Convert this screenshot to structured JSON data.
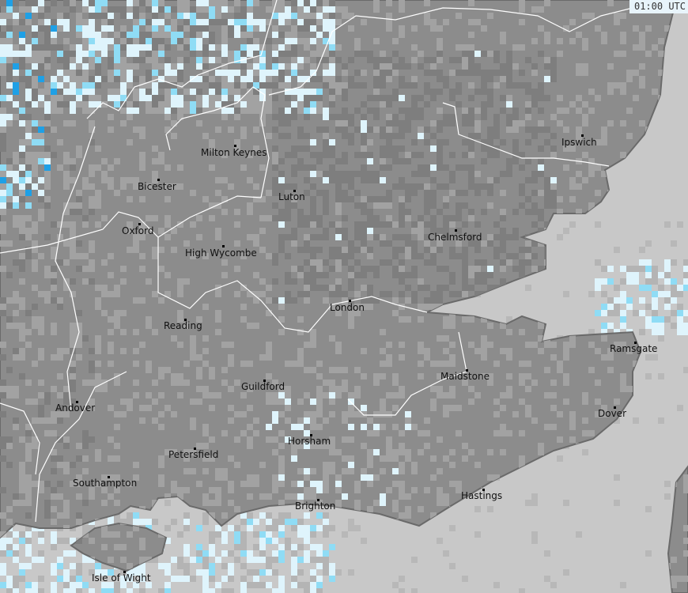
{
  "timestamp": "01:00 UTC",
  "colors": {
    "sea": "#c8c8c8",
    "land": "#8c8c8c",
    "land_light": "#a2a2a2",
    "land_dark": "#7e7e7e",
    "rain_light": "#dff4fc",
    "rain_medium": "#8fdcf5",
    "rain_heavy": "#1ea0e6",
    "boundary": "#ffffff",
    "coast": "#6a6a6a"
  },
  "cities": [
    {
      "name": "Ipswich"
    },
    {
      "name": "Milton Keynes"
    },
    {
      "name": "Bicester"
    },
    {
      "name": "Luton"
    },
    {
      "name": "Oxford"
    },
    {
      "name": "Chelmsford"
    },
    {
      "name": "High Wycombe"
    },
    {
      "name": "London"
    },
    {
      "name": "Reading"
    },
    {
      "name": "Ramsgate"
    },
    {
      "name": "Maidstone"
    },
    {
      "name": "Guildford"
    },
    {
      "name": "Andover"
    },
    {
      "name": "Dover"
    },
    {
      "name": "Horsham"
    },
    {
      "name": "Petersfield"
    },
    {
      "name": "Southampton"
    },
    {
      "name": "Brighton"
    },
    {
      "name": "Hastings"
    },
    {
      "name": "Isle of Wight"
    }
  ]
}
